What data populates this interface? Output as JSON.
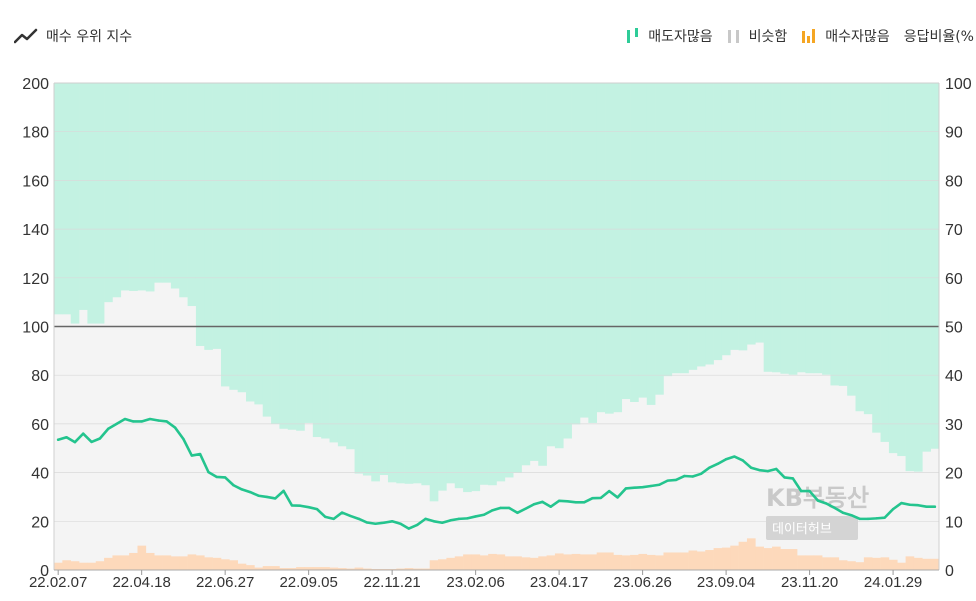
{
  "header": {
    "title": "매수 우위 지수",
    "legend": [
      {
        "label": "매도자많음",
        "color": "#2ecc98"
      },
      {
        "label": "비슷함",
        "color": "#c8c8c8"
      },
      {
        "label": "매수자많음",
        "color": "#f5a623"
      }
    ],
    "right_axis_title": "응답비율(%"
  },
  "watermark": {
    "line1": "KB부동산",
    "line2": "데이터허브"
  },
  "chart_data": {
    "type": "bar",
    "title": "",
    "left_axis": {
      "ylim": [
        0,
        200
      ],
      "ticks": [
        "0",
        "20",
        "40",
        "60",
        "80",
        "100",
        "120",
        "140",
        "160",
        "180",
        "200"
      ]
    },
    "right_axis": {
      "ylim": [
        0,
        100
      ],
      "ticks": [
        "0",
        "10",
        "20",
        "30",
        "40",
        "50",
        "60",
        "70",
        "80",
        "90",
        "100"
      ]
    },
    "reference_line": 100,
    "x_tick_labels": [
      "22.02.07",
      "22.04.18",
      "22.06.27",
      "22.09.05",
      "22.11.21",
      "23.02.06",
      "23.04.17",
      "23.06.26",
      "23.09.04",
      "23.11.20",
      "24.01.29"
    ],
    "x_tick_every": 10,
    "grid": true,
    "colors": {
      "sell_fill": "#c3f2e2",
      "similar_fill": "#f4f4f4",
      "buy_fill": "#fdd9bb",
      "index_line": "#24c48e",
      "axis": "#cfcfcf",
      "ref_line": "#666666"
    },
    "series": [
      {
        "name": "매수자많음",
        "axis": "right",
        "values": [
          1.5,
          2,
          1.8,
          1.5,
          1.5,
          1.8,
          2.5,
          3,
          3,
          3.5,
          5,
          3.5,
          3,
          3,
          2.8,
          2.8,
          3.2,
          3,
          2.6,
          2.5,
          2.2,
          2,
          1.3,
          1,
          0.5,
          0.8,
          0.8,
          0.4,
          0.4,
          0.6,
          0.6,
          0.6,
          0.6,
          0.5,
          0.4,
          0.3,
          0.5,
          0.3,
          0.2,
          0.2,
          0.2,
          0.3,
          0.4,
          0.3,
          0.3,
          2,
          2.2,
          2.5,
          2.8,
          3.2,
          3.2,
          3,
          3.3,
          3.2,
          2.8,
          2.8,
          2.6,
          2.5,
          2.8,
          3,
          3.4,
          3.2,
          3.3,
          3.2,
          3.2,
          3.6,
          3.6,
          3.1,
          3,
          3.1,
          3.3,
          3.1,
          3,
          3.6,
          3.6,
          3.6,
          4,
          3.8,
          4.1,
          4.5,
          4.6,
          5,
          5.8,
          6.5,
          4.8,
          4.5,
          4.8,
          4.3,
          4.3,
          3,
          3,
          3,
          2.6,
          2.6,
          2,
          1.8,
          1.6,
          2.6,
          2.5,
          2.6,
          2.1,
          1.5,
          2.8,
          2.5,
          2.3,
          2.3,
          2.3,
          2.2
        ]
      },
      {
        "name": "매도자많음",
        "axis": "right",
        "values": [
          47.5,
          47.5,
          49.4,
          46.6,
          49.4,
          49.4,
          45,
          44,
          42.6,
          42.7,
          42.6,
          42.8,
          41,
          41,
          42.2,
          44,
          45.8,
          54,
          54.8,
          54.6,
          62.3,
          63,
          63.5,
          65.4,
          66,
          68.5,
          70,
          71,
          71.2,
          71.4,
          69.8,
          72.7,
          73,
          73.8,
          74.6,
          75.2,
          80.2,
          80.6,
          81.8,
          80.5,
          82,
          82.2,
          82.3,
          82.2,
          82.6,
          85.9,
          83.7,
          82.2,
          83.2,
          84,
          83.8,
          82.5,
          82.6,
          81.8,
          81,
          80,
          78.5,
          77.6,
          78.6,
          74.6,
          75,
          73,
          70.1,
          68.7,
          69.8,
          67.6,
          67.9,
          67.6,
          64.9,
          65.5,
          64.6,
          66.1,
          64,
          60.2,
          59.6,
          59.6,
          58.9,
          58.2,
          57.8,
          56.9,
          55.9,
          54.8,
          54.9,
          53.7,
          53.3,
          59.3,
          59.4,
          59.7,
          59.9,
          59.4,
          59.6,
          59.6,
          59.9,
          62.1,
          62.2,
          64.2,
          67.4,
          68,
          71.8,
          73.7,
          76,
          76.6,
          79.7,
          79.8,
          75.7,
          75.1,
          75.6,
          75.3
        ]
      },
      {
        "name": "매수 우위 지수",
        "axis": "left",
        "values": [
          53.5,
          54.5,
          52.5,
          56,
          52.6,
          54,
          58,
          60,
          62,
          61,
          61,
          62,
          61.4,
          61,
          58.5,
          53.8,
          47,
          47.6,
          40.2,
          38.2,
          38,
          34.8,
          33.1,
          32,
          30.5,
          30,
          29.4,
          32.5,
          26.5,
          26.4,
          25.8,
          25,
          21.8,
          21,
          23.6,
          22.2,
          21,
          19.5,
          19,
          19.4,
          20,
          19,
          17,
          18.5,
          21,
          20,
          19.4,
          20.4,
          21,
          21.2,
          22,
          22.7,
          24.5,
          25.5,
          25.5,
          23.5,
          25.2,
          27,
          28,
          26,
          28.4,
          28.2,
          27.8,
          27.8,
          29.5,
          29.6,
          32.4,
          29.8,
          33.5,
          33.8,
          34,
          34.5,
          35,
          36.7,
          37,
          38.6,
          38.4,
          39.5,
          42,
          43.6,
          45.5,
          46.6,
          45,
          42,
          41,
          40.6,
          41.5,
          38,
          37.6,
          32.4,
          32.4,
          28.5,
          27.3,
          25.5,
          23.5,
          22.5,
          21,
          21,
          21.2,
          21.5,
          25,
          27.5,
          26.8,
          26.6,
          26,
          26
        ]
      }
    ]
  }
}
